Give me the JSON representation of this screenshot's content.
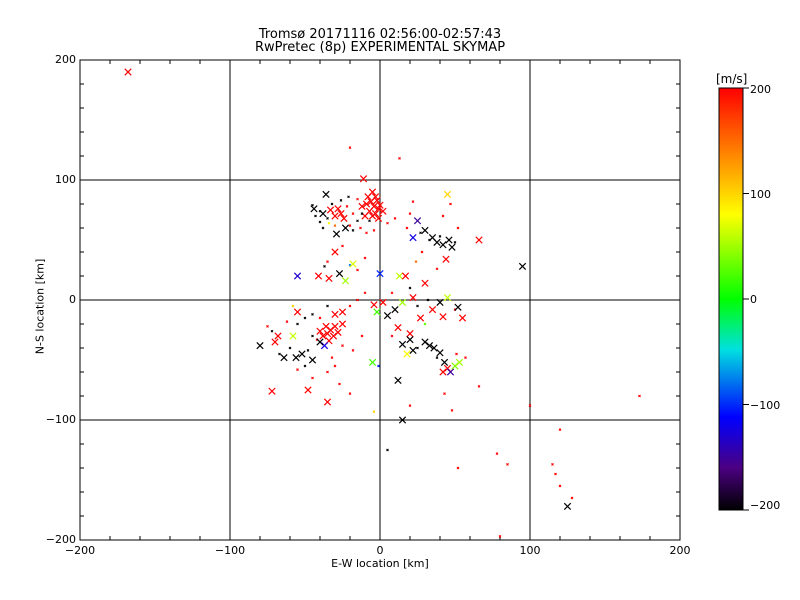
{
  "chart_data": {
    "type": "scatter",
    "title": "Tromsø 20171116 02:56:00-02:57:43",
    "subtitle": "RwPretec (8p) EXPERIMENTAL SKYMAP",
    "xlabel": "E-W location [km]",
    "ylabel": "N-S location [km]",
    "xlim": [
      -200,
      200
    ],
    "ylim": [
      -200,
      200
    ],
    "xticks": [
      -200,
      -100,
      0,
      100,
      200
    ],
    "yticks": [
      -200,
      -100,
      0,
      100,
      200
    ],
    "xtick_labels": [
      "−200",
      "−100",
      "0",
      "100",
      "200"
    ],
    "ytick_labels": [
      "−200",
      "−100",
      "0",
      "100",
      "200"
    ],
    "grid": true,
    "colorbar": {
      "label": "[m/s]",
      "range": [
        -200,
        200
      ],
      "ticks": [
        -200,
        -100,
        0,
        100,
        200
      ],
      "tick_labels": [
        "−200",
        "−100",
        "0",
        "100",
        "200"
      ],
      "colormap": "rainbow (black-purple-blue-cyan-green-yellow-red)"
    },
    "marker_key": "x = large cross, d = small dot; v = velocity in m/s (color)",
    "points": [
      {
        "x": -168,
        "y": 190,
        "v": 200,
        "m": "x"
      },
      {
        "x": -20,
        "y": 127,
        "v": 200,
        "m": "d"
      },
      {
        "x": -11,
        "y": 101,
        "v": 200,
        "m": "x"
      },
      {
        "x": 13,
        "y": 118,
        "v": 200,
        "m": "d"
      },
      {
        "x": -5,
        "y": 90,
        "v": 200,
        "m": "x"
      },
      {
        "x": -3,
        "y": 86,
        "v": 200,
        "m": "x"
      },
      {
        "x": -6,
        "y": 82,
        "v": 200,
        "m": "x"
      },
      {
        "x": -9,
        "y": 80,
        "v": 200,
        "m": "x"
      },
      {
        "x": -4,
        "y": 78,
        "v": 200,
        "m": "x"
      },
      {
        "x": -1,
        "y": 76,
        "v": 200,
        "m": "x"
      },
      {
        "x": -7,
        "y": 74,
        "v": 200,
        "m": "x"
      },
      {
        "x": -3,
        "y": 72,
        "v": 200,
        "m": "x"
      },
      {
        "x": 0,
        "y": 79,
        "v": 200,
        "m": "x"
      },
      {
        "x": -2,
        "y": 83,
        "v": 200,
        "m": "x"
      },
      {
        "x": -8,
        "y": 86,
        "v": 200,
        "m": "x"
      },
      {
        "x": -12,
        "y": 78,
        "v": 200,
        "m": "x"
      },
      {
        "x": -5,
        "y": 70,
        "v": 200,
        "m": "x"
      },
      {
        "x": -10,
        "y": 70,
        "v": 200,
        "m": "x"
      },
      {
        "x": 2,
        "y": 74,
        "v": 200,
        "m": "x"
      },
      {
        "x": -1,
        "y": 68,
        "v": 200,
        "m": "x"
      },
      {
        "x": -15,
        "y": 84,
        "v": 200,
        "m": "d"
      },
      {
        "x": -18,
        "y": 72,
        "v": 200,
        "m": "d"
      },
      {
        "x": -22,
        "y": 78,
        "v": 200,
        "m": "d"
      },
      {
        "x": -28,
        "y": 76,
        "v": 200,
        "m": "x"
      },
      {
        "x": -26,
        "y": 72,
        "v": 200,
        "m": "x"
      },
      {
        "x": -24,
        "y": 68,
        "v": 200,
        "m": "x"
      },
      {
        "x": -30,
        "y": 70,
        "v": 200,
        "m": "x"
      },
      {
        "x": -33,
        "y": 75,
        "v": 200,
        "m": "x"
      },
      {
        "x": -20,
        "y": 62,
        "v": 200,
        "m": "d"
      },
      {
        "x": -13,
        "y": 60,
        "v": 200,
        "m": "d"
      },
      {
        "x": -9,
        "y": 56,
        "v": 200,
        "m": "d"
      },
      {
        "x": -4,
        "y": 58,
        "v": 200,
        "m": "d"
      },
      {
        "x": 5,
        "y": 64,
        "v": 200,
        "m": "d"
      },
      {
        "x": 10,
        "y": 68,
        "v": 200,
        "m": "d"
      },
      {
        "x": -38,
        "y": 72,
        "v": -200,
        "m": "x"
      },
      {
        "x": -44,
        "y": 76,
        "v": -200,
        "m": "x"
      },
      {
        "x": -43,
        "y": 70,
        "v": -200,
        "m": "d"
      },
      {
        "x": -40,
        "y": 65,
        "v": -200,
        "m": "d"
      },
      {
        "x": -35,
        "y": 68,
        "v": -200,
        "m": "d"
      },
      {
        "x": -32,
        "y": 80,
        "v": -200,
        "m": "d"
      },
      {
        "x": -29,
        "y": 55,
        "v": -200,
        "m": "x"
      },
      {
        "x": -23,
        "y": 60,
        "v": -200,
        "m": "x"
      },
      {
        "x": -30,
        "y": 62,
        "v": 150,
        "m": "d"
      },
      {
        "x": -36,
        "y": 88,
        "v": -200,
        "m": "x"
      },
      {
        "x": -18,
        "y": 58,
        "v": -200,
        "m": "d"
      },
      {
        "x": -15,
        "y": 66,
        "v": -200,
        "m": "d"
      },
      {
        "x": -12,
        "y": 72,
        "v": -200,
        "m": "d"
      },
      {
        "x": -7,
        "y": 66,
        "v": -200,
        "m": "d"
      },
      {
        "x": -26,
        "y": 83,
        "v": -200,
        "m": "d"
      },
      {
        "x": -21,
        "y": 86,
        "v": -200,
        "m": "d"
      },
      {
        "x": -45,
        "y": 79,
        "v": -200,
        "m": "d"
      },
      {
        "x": -38,
        "y": 60,
        "v": -200,
        "m": "d"
      },
      {
        "x": -34,
        "y": 64,
        "v": 80,
        "m": "d"
      },
      {
        "x": -40,
        "y": 74,
        "v": -200,
        "m": "d"
      },
      {
        "x": 20,
        "y": 72,
        "v": 200,
        "m": "d"
      },
      {
        "x": 25,
        "y": 66,
        "v": -150,
        "m": "x"
      },
      {
        "x": 22,
        "y": 52,
        "v": -120,
        "m": "x"
      },
      {
        "x": 30,
        "y": 58,
        "v": -200,
        "m": "x"
      },
      {
        "x": 35,
        "y": 52,
        "v": -200,
        "m": "x"
      },
      {
        "x": 38,
        "y": 48,
        "v": -200,
        "m": "x"
      },
      {
        "x": 42,
        "y": 46,
        "v": -200,
        "m": "x"
      },
      {
        "x": 46,
        "y": 50,
        "v": -200,
        "m": "x"
      },
      {
        "x": 40,
        "y": 53,
        "v": -200,
        "m": "d"
      },
      {
        "x": 33,
        "y": 50,
        "v": -200,
        "m": "d"
      },
      {
        "x": 27,
        "y": 56,
        "v": -200,
        "m": "d"
      },
      {
        "x": 48,
        "y": 44,
        "v": -200,
        "m": "x"
      },
      {
        "x": 50,
        "y": 48,
        "v": -200,
        "m": "d"
      },
      {
        "x": 45,
        "y": 88,
        "v": 100,
        "m": "x"
      },
      {
        "x": 52,
        "y": 60,
        "v": 200,
        "m": "d"
      },
      {
        "x": 47,
        "y": 80,
        "v": 200,
        "m": "d"
      },
      {
        "x": 66,
        "y": 50,
        "v": 200,
        "m": "x"
      },
      {
        "x": 95,
        "y": 28,
        "v": -200,
        "m": "x"
      },
      {
        "x": 42,
        "y": 70,
        "v": 200,
        "m": "d"
      },
      {
        "x": 22,
        "y": 82,
        "v": 200,
        "m": "d"
      },
      {
        "x": 18,
        "y": 60,
        "v": 200,
        "m": "d"
      },
      {
        "x": 28,
        "y": 40,
        "v": 200,
        "m": "d"
      },
      {
        "x": 24,
        "y": 32,
        "v": 150,
        "m": "d"
      },
      {
        "x": 44,
        "y": 34,
        "v": 200,
        "m": "x"
      },
      {
        "x": 38,
        "y": 26,
        "v": 200,
        "m": "d"
      },
      {
        "x": -55,
        "y": 20,
        "v": -130,
        "m": "x"
      },
      {
        "x": -41,
        "y": 20,
        "v": 200,
        "m": "x"
      },
      {
        "x": -27,
        "y": 22,
        "v": -200,
        "m": "x"
      },
      {
        "x": -23,
        "y": 16,
        "v": 50,
        "m": "x"
      },
      {
        "x": -20,
        "y": 29,
        "v": -80,
        "m": "d"
      },
      {
        "x": -35,
        "y": 32,
        "v": 200,
        "m": "d"
      },
      {
        "x": -30,
        "y": 40,
        "v": 200,
        "m": "x"
      },
      {
        "x": -25,
        "y": 45,
        "v": 200,
        "m": "d"
      },
      {
        "x": -37,
        "y": 28,
        "v": -200,
        "m": "d"
      },
      {
        "x": -34,
        "y": 18,
        "v": 200,
        "m": "x"
      },
      {
        "x": -18,
        "y": 30,
        "v": 70,
        "m": "x"
      },
      {
        "x": -15,
        "y": 25,
        "v": 200,
        "m": "d"
      },
      {
        "x": -10,
        "y": 35,
        "v": 200,
        "m": "d"
      },
      {
        "x": 0,
        "y": 22,
        "v": -100,
        "m": "x"
      },
      {
        "x": 13,
        "y": 20,
        "v": 60,
        "m": "x"
      },
      {
        "x": 17,
        "y": 20,
        "v": 200,
        "m": "x"
      },
      {
        "x": 20,
        "y": 10,
        "v": -200,
        "m": "d"
      },
      {
        "x": 30,
        "y": 14,
        "v": 200,
        "m": "x"
      },
      {
        "x": 22,
        "y": 2,
        "v": 200,
        "m": "x"
      },
      {
        "x": 15,
        "y": -2,
        "v": 50,
        "m": "x"
      },
      {
        "x": 10,
        "y": -8,
        "v": -200,
        "m": "x"
      },
      {
        "x": 5,
        "y": -13,
        "v": -200,
        "m": "x"
      },
      {
        "x": -2,
        "y": -10,
        "v": 20,
        "m": "x"
      },
      {
        "x": -4,
        "y": -4,
        "v": 200,
        "m": "x"
      },
      {
        "x": 2,
        "y": -2,
        "v": 200,
        "m": "x"
      },
      {
        "x": 8,
        "y": 6,
        "v": 200,
        "m": "d"
      },
      {
        "x": -10,
        "y": 6,
        "v": 200,
        "m": "d"
      },
      {
        "x": -15,
        "y": 0,
        "v": 200,
        "m": "d"
      },
      {
        "x": 27,
        "y": -15,
        "v": 200,
        "m": "x"
      },
      {
        "x": 35,
        "y": -8,
        "v": 200,
        "m": "x"
      },
      {
        "x": 40,
        "y": -2,
        "v": -200,
        "m": "x"
      },
      {
        "x": 45,
        "y": 2,
        "v": 60,
        "m": "x"
      },
      {
        "x": 32,
        "y": 0,
        "v": -200,
        "m": "d"
      },
      {
        "x": 25,
        "y": -5,
        "v": -200,
        "m": "d"
      },
      {
        "x": 42,
        "y": -14,
        "v": 200,
        "m": "x"
      },
      {
        "x": 50,
        "y": -8,
        "v": 200,
        "m": "d"
      },
      {
        "x": 55,
        "y": -15,
        "v": 200,
        "m": "x"
      },
      {
        "x": 52,
        "y": -6,
        "v": -200,
        "m": "x"
      },
      {
        "x": 12,
        "y": -23,
        "v": 200,
        "m": "x"
      },
      {
        "x": 20,
        "y": -28,
        "v": 200,
        "m": "x"
      },
      {
        "x": 30,
        "y": -20,
        "v": 30,
        "m": "d"
      },
      {
        "x": 8,
        "y": -30,
        "v": 200,
        "m": "d"
      },
      {
        "x": 15,
        "y": -37,
        "v": -200,
        "m": "x"
      },
      {
        "x": 20,
        "y": -33,
        "v": -200,
        "m": "x"
      },
      {
        "x": 22,
        "y": -42,
        "v": -200,
        "m": "x"
      },
      {
        "x": 18,
        "y": -45,
        "v": 80,
        "m": "x"
      },
      {
        "x": 25,
        "y": -40,
        "v": -200,
        "m": "d"
      },
      {
        "x": 30,
        "y": -35,
        "v": -200,
        "m": "x"
      },
      {
        "x": 33,
        "y": -38,
        "v": -200,
        "m": "x"
      },
      {
        "x": 36,
        "y": -40,
        "v": -200,
        "m": "x"
      },
      {
        "x": 40,
        "y": -44,
        "v": -200,
        "m": "x"
      },
      {
        "x": 38,
        "y": -48,
        "v": -200,
        "m": "d"
      },
      {
        "x": 43,
        "y": -52,
        "v": -200,
        "m": "x"
      },
      {
        "x": 45,
        "y": -57,
        "v": 200,
        "m": "x"
      },
      {
        "x": 42,
        "y": -60,
        "v": 200,
        "m": "x"
      },
      {
        "x": 47,
        "y": -60,
        "v": -150,
        "m": "x"
      },
      {
        "x": 50,
        "y": -55,
        "v": 40,
        "m": "x"
      },
      {
        "x": 53,
        "y": -52,
        "v": 50,
        "m": "x"
      },
      {
        "x": 51,
        "y": -45,
        "v": 200,
        "m": "d"
      },
      {
        "x": 57,
        "y": -48,
        "v": 200,
        "m": "d"
      },
      {
        "x": -5,
        "y": -52,
        "v": 20,
        "m": "x"
      },
      {
        "x": -1,
        "y": -55,
        "v": -100,
        "m": "d"
      },
      {
        "x": 12,
        "y": -67,
        "v": -200,
        "m": "x"
      },
      {
        "x": 15,
        "y": -100,
        "v": -200,
        "m": "x"
      },
      {
        "x": -4,
        "y": -93,
        "v": 100,
        "m": "d"
      },
      {
        "x": 5,
        "y": -125,
        "v": -200,
        "m": "d"
      },
      {
        "x": 43,
        "y": -78,
        "v": 200,
        "m": "d"
      },
      {
        "x": 48,
        "y": -92,
        "v": 200,
        "m": "d"
      },
      {
        "x": -38,
        "y": -30,
        "v": 200,
        "m": "x"
      },
      {
        "x": -35,
        "y": -28,
        "v": 200,
        "m": "x"
      },
      {
        "x": -33,
        "y": -25,
        "v": 200,
        "m": "x"
      },
      {
        "x": -36,
        "y": -22,
        "v": 200,
        "m": "x"
      },
      {
        "x": -31,
        "y": -30,
        "v": 200,
        "m": "x"
      },
      {
        "x": -30,
        "y": -22,
        "v": 200,
        "m": "x"
      },
      {
        "x": -40,
        "y": -26,
        "v": 200,
        "m": "x"
      },
      {
        "x": -34,
        "y": -34,
        "v": 200,
        "m": "x"
      },
      {
        "x": -28,
        "y": -27,
        "v": 200,
        "m": "x"
      },
      {
        "x": -25,
        "y": -20,
        "v": 200,
        "m": "x"
      },
      {
        "x": -42,
        "y": -33,
        "v": 200,
        "m": "d"
      },
      {
        "x": -37,
        "y": -38,
        "v": -120,
        "m": "x"
      },
      {
        "x": -40,
        "y": -35,
        "v": -200,
        "m": "x"
      },
      {
        "x": -45,
        "y": -30,
        "v": -200,
        "m": "d"
      },
      {
        "x": -48,
        "y": -42,
        "v": -200,
        "m": "d"
      },
      {
        "x": -52,
        "y": -45,
        "v": -200,
        "m": "x"
      },
      {
        "x": -56,
        "y": -48,
        "v": -200,
        "m": "x"
      },
      {
        "x": -60,
        "y": -40,
        "v": -200,
        "m": "d"
      },
      {
        "x": -64,
        "y": -48,
        "v": -200,
        "m": "x"
      },
      {
        "x": -67,
        "y": -45,
        "v": -200,
        "m": "d"
      },
      {
        "x": -70,
        "y": -35,
        "v": 200,
        "m": "x"
      },
      {
        "x": -68,
        "y": -30,
        "v": 200,
        "m": "x"
      },
      {
        "x": -72,
        "y": -26,
        "v": -200,
        "m": "d"
      },
      {
        "x": -80,
        "y": -38,
        "v": -200,
        "m": "x"
      },
      {
        "x": -75,
        "y": -22,
        "v": 200,
        "m": "d"
      },
      {
        "x": -58,
        "y": -30,
        "v": 60,
        "m": "x"
      },
      {
        "x": -55,
        "y": -20,
        "v": -200,
        "m": "d"
      },
      {
        "x": -50,
        "y": -15,
        "v": -200,
        "m": "d"
      },
      {
        "x": -45,
        "y": -12,
        "v": -200,
        "m": "d"
      },
      {
        "x": -40,
        "y": -15,
        "v": 200,
        "m": "d"
      },
      {
        "x": -30,
        "y": -12,
        "v": 200,
        "m": "x"
      },
      {
        "x": -25,
        "y": -10,
        "v": 200,
        "m": "x"
      },
      {
        "x": -20,
        "y": -5,
        "v": 200,
        "m": "d"
      },
      {
        "x": -35,
        "y": -5,
        "v": -200,
        "m": "d"
      },
      {
        "x": -55,
        "y": -10,
        "v": 200,
        "m": "x"
      },
      {
        "x": -58,
        "y": -5,
        "v": 100,
        "m": "d"
      },
      {
        "x": -62,
        "y": -18,
        "v": 200,
        "m": "d"
      },
      {
        "x": -32,
        "y": -48,
        "v": 200,
        "m": "d"
      },
      {
        "x": -30,
        "y": -55,
        "v": 200,
        "m": "d"
      },
      {
        "x": -35,
        "y": -60,
        "v": 200,
        "m": "d"
      },
      {
        "x": -45,
        "y": -50,
        "v": -200,
        "m": "x"
      },
      {
        "x": -50,
        "y": -55,
        "v": -200,
        "m": "d"
      },
      {
        "x": -55,
        "y": -58,
        "v": 200,
        "m": "d"
      },
      {
        "x": -45,
        "y": -65,
        "v": 200,
        "m": "d"
      },
      {
        "x": -27,
        "y": -70,
        "v": 200,
        "m": "d"
      },
      {
        "x": -48,
        "y": -75,
        "v": 200,
        "m": "x"
      },
      {
        "x": -35,
        "y": -85,
        "v": 200,
        "m": "x"
      },
      {
        "x": -72,
        "y": -76,
        "v": 200,
        "m": "x"
      },
      {
        "x": -20,
        "y": -78,
        "v": 200,
        "m": "d"
      },
      {
        "x": -25,
        "y": -38,
        "v": 200,
        "m": "d"
      },
      {
        "x": -18,
        "y": -42,
        "v": 200,
        "m": "d"
      },
      {
        "x": -12,
        "y": -30,
        "v": 200,
        "m": "d"
      },
      {
        "x": 100,
        "y": -88,
        "v": 200,
        "m": "d"
      },
      {
        "x": 78,
        "y": -128,
        "v": 200,
        "m": "d"
      },
      {
        "x": 85,
        "y": -137,
        "v": 200,
        "m": "d"
      },
      {
        "x": 52,
        "y": -140,
        "v": 200,
        "m": "d"
      },
      {
        "x": 120,
        "y": -108,
        "v": 200,
        "m": "d"
      },
      {
        "x": 115,
        "y": -137,
        "v": 200,
        "m": "d"
      },
      {
        "x": 117,
        "y": -145,
        "v": 200,
        "m": "d"
      },
      {
        "x": 120,
        "y": -155,
        "v": 200,
        "m": "d"
      },
      {
        "x": 128,
        "y": -165,
        "v": 200,
        "m": "d"
      },
      {
        "x": 125,
        "y": -172,
        "v": -200,
        "m": "x"
      },
      {
        "x": 173,
        "y": -80,
        "v": 200,
        "m": "d"
      },
      {
        "x": 80,
        "y": -197,
        "v": 200,
        "m": "d"
      },
      {
        "x": 66,
        "y": -72,
        "v": 200,
        "m": "d"
      },
      {
        "x": 20,
        "y": -88,
        "v": 200,
        "m": "d"
      }
    ]
  }
}
